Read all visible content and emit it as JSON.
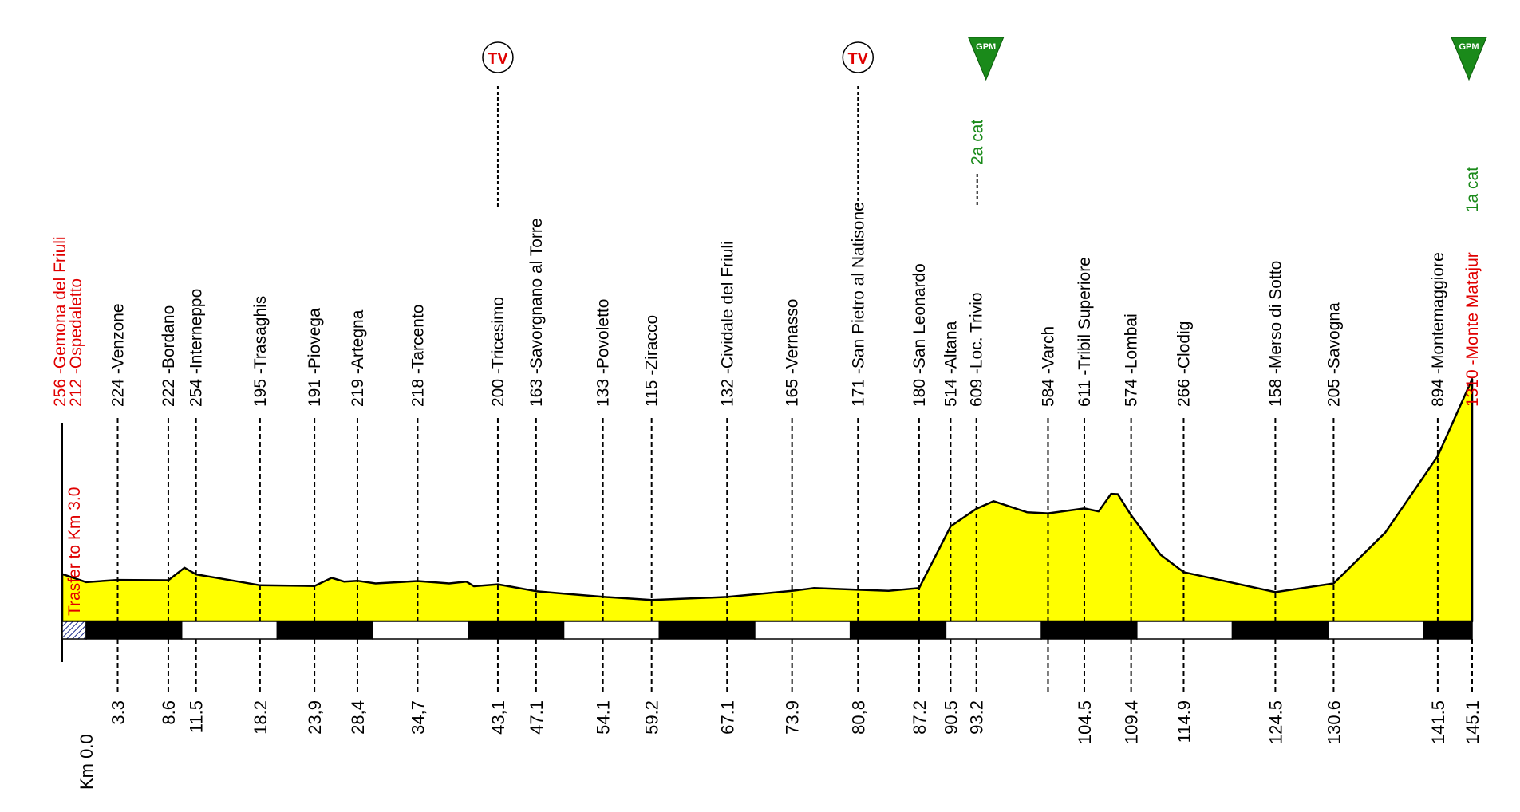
{
  "chart_data": {
    "type": "area",
    "title": "",
    "xlabel": "Km",
    "ylabel": "",
    "fill_color": "#ffff00",
    "line_color": "#000000",
    "start_color": "#e00000",
    "climb_color": "#1a8a1a",
    "km_axis_prefix": "Km",
    "xlim": [
      -3.0,
      145.1
    ],
    "ylim": [
      0,
      1400
    ],
    "start": {
      "label1": "256 -Gemona del Friuli",
      "label2": "212 -Ospedaletto",
      "transfer": "Trasfer to Km 3.0",
      "km": "0.0"
    },
    "waypoints": [
      {
        "name": "Venzone",
        "km": 3.3,
        "km_label": "3.3",
        "alt": 224,
        "label": "224 -Venzone",
        "color": "#000000"
      },
      {
        "name": "Bordano",
        "km": 8.6,
        "km_label": "8.6",
        "alt": 222,
        "label": "222 -Bordano",
        "color": "#000000"
      },
      {
        "name": "Interneppo",
        "km": 11.5,
        "km_label": "11.5",
        "alt": 254,
        "label": "254 -Interneppo",
        "color": "#000000"
      },
      {
        "name": "Trasaghis",
        "km": 18.2,
        "km_label": "18.2",
        "alt": 195,
        "label": "195 -Trasaghis",
        "color": "#000000"
      },
      {
        "name": "Piovega",
        "km": 23.9,
        "km_label": "23,9",
        "alt": 191,
        "label": "191 -Piovega",
        "color": "#000000"
      },
      {
        "name": "Artegna",
        "km": 28.4,
        "km_label": "28,4",
        "alt": 219,
        "label": "219 -Artegna",
        "color": "#000000"
      },
      {
        "name": "Tarcento",
        "km": 34.7,
        "km_label": "34,7",
        "alt": 218,
        "label": "218 -Tarcento",
        "color": "#000000"
      },
      {
        "name": "Tricesimo",
        "km": 43.1,
        "km_label": "43,1",
        "alt": 200,
        "label": "200 -Tricesimo",
        "color": "#000000",
        "tv": "TV"
      },
      {
        "name": "Savorgnano al Torre",
        "km": 47.1,
        "km_label": "47.1",
        "alt": 163,
        "label": "163 -Savorgnano al Torre",
        "color": "#000000"
      },
      {
        "name": "Povoletto",
        "km": 54.1,
        "km_label": "54.1",
        "alt": 133,
        "label": "133 -Povoletto",
        "color": "#000000"
      },
      {
        "name": "Ziracco",
        "km": 59.2,
        "km_label": "59.2",
        "alt": 115,
        "label": "115 -Ziracco",
        "color": "#000000"
      },
      {
        "name": "Cividale del Friuli",
        "km": 67.1,
        "km_label": "67.1",
        "alt": 132,
        "label": "132 -Cividale del Friuli",
        "color": "#000000"
      },
      {
        "name": "Vernasso",
        "km": 73.9,
        "km_label": "73.9",
        "alt": 165,
        "label": "165 -Vernasso",
        "color": "#000000"
      },
      {
        "name": "San Pietro al Natisone",
        "km": 80.8,
        "km_label": "80,8",
        "alt": 171,
        "label": "171 -San Pietro al Natisone",
        "color": "#000000",
        "tv": "TV"
      },
      {
        "name": "San Leonardo",
        "km": 87.2,
        "km_label": "87.2",
        "alt": 180,
        "label": "180 -San Leonardo",
        "color": "#000000"
      },
      {
        "name": "Altana",
        "km": 90.5,
        "km_label": "90.5",
        "alt": 514,
        "label": "514 -Altana",
        "color": "#000000"
      },
      {
        "name": "Loc. Trivio",
        "km": 93.2,
        "km_label": "93.2",
        "alt": 609,
        "label": "609 -Loc. Trivio",
        "color": "#000000",
        "gpm": "GPM",
        "category": "2a cat"
      },
      {
        "name": "Varch",
        "km": 100.7,
        "km_label": "",
        "alt": 584,
        "label": "584 -Varch",
        "color": "#000000"
      },
      {
        "name": "Tribil Superiore",
        "km": 104.5,
        "km_label": "104.5",
        "alt": 611,
        "label": "611 -Tribil Superiore",
        "color": "#000000"
      },
      {
        "name": "Lombai",
        "km": 109.4,
        "km_label": "109.4",
        "alt": 574,
        "label": "574 -Lombai",
        "color": "#000000"
      },
      {
        "name": "Clodig",
        "km": 114.9,
        "km_label": "114.9",
        "alt": 266,
        "label": "266 -Clodig",
        "color": "#000000"
      },
      {
        "name": "Merso di Sotto",
        "km": 124.5,
        "km_label": "124.5",
        "alt": 158,
        "label": "158 -Merso di Sotto",
        "color": "#000000"
      },
      {
        "name": "Savogna",
        "km": 130.6,
        "km_label": "130.6",
        "alt": 205,
        "label": "205 -Savogna",
        "color": "#000000"
      },
      {
        "name": "Montemaggiore",
        "km": 141.5,
        "km_label": "141.5",
        "alt": 894,
        "label": "894 -Montemaggiore",
        "color": "#000000"
      },
      {
        "name": "Monte Matajur",
        "km": 145.1,
        "km_label": "145.1",
        "alt": 1310,
        "label": "1310 -Monte Matajur",
        "color": "#e00000",
        "gpm": "GPM",
        "category": "1a cat"
      }
    ],
    "profile": [
      [
        -3.0,
        256
      ],
      [
        0.0,
        212
      ],
      [
        3.3,
        224
      ],
      [
        8.6,
        222
      ],
      [
        10.3,
        290
      ],
      [
        11.5,
        254
      ],
      [
        18.2,
        195
      ],
      [
        23.9,
        191
      ],
      [
        25.7,
        235
      ],
      [
        27.0,
        215
      ],
      [
        28.4,
        219
      ],
      [
        30.3,
        205
      ],
      [
        34.7,
        218
      ],
      [
        38.0,
        205
      ],
      [
        39.8,
        215
      ],
      [
        40.6,
        190
      ],
      [
        43.1,
        200
      ],
      [
        47.1,
        163
      ],
      [
        50.0,
        150
      ],
      [
        54.1,
        133
      ],
      [
        59.2,
        115
      ],
      [
        67.1,
        132
      ],
      [
        73.9,
        165
      ],
      [
        76.2,
        180
      ],
      [
        80.8,
        171
      ],
      [
        84.0,
        165
      ],
      [
        87.2,
        180
      ],
      [
        90.5,
        514
      ],
      [
        93.2,
        609
      ],
      [
        95.0,
        650
      ],
      [
        98.5,
        590
      ],
      [
        100.7,
        584
      ],
      [
        104.5,
        611
      ],
      [
        106.0,
        595
      ],
      [
        107.3,
        690
      ],
      [
        108.0,
        688
      ],
      [
        109.4,
        574
      ],
      [
        112.5,
        360
      ],
      [
        114.9,
        266
      ],
      [
        124.5,
        158
      ],
      [
        130.6,
        205
      ],
      [
        136.0,
        480
      ],
      [
        141.5,
        894
      ],
      [
        145.1,
        1310
      ]
    ]
  }
}
